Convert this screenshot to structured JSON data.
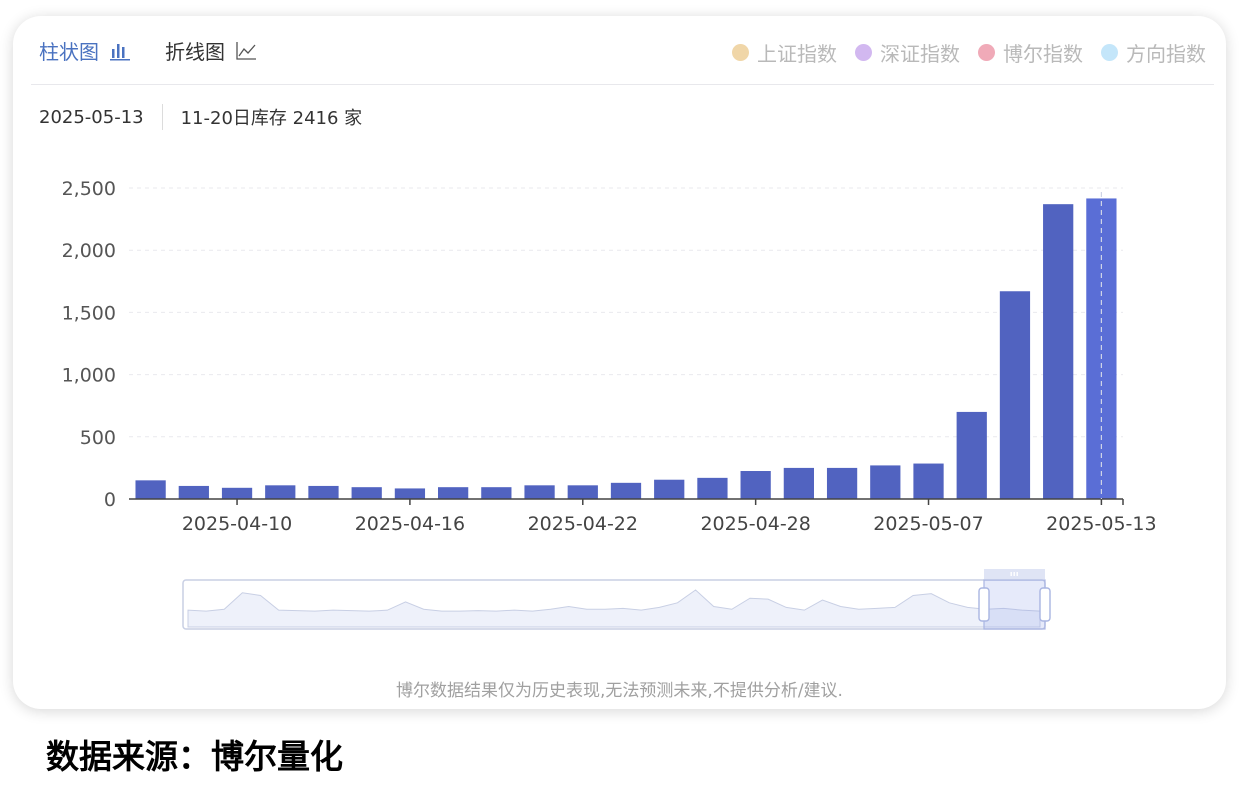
{
  "tabs": [
    {
      "label": "柱状图",
      "icon": "bar-chart-icon"
    },
    {
      "label": "折线图",
      "icon": "line-chart-icon"
    }
  ],
  "legend": [
    {
      "label": "上证指数",
      "color": "#f0d6a8"
    },
    {
      "label": "深证指数",
      "color": "#d2b8f0"
    },
    {
      "label": "博尔指数",
      "color": "#f0aab8"
    },
    {
      "label": "方向指数",
      "color": "#c4e6fa"
    }
  ],
  "info": {
    "date": "2025-05-13",
    "text": "11-20日库存 2416 家"
  },
  "disclaimer": "博尔数据结果仅为历史表现,无法预测未来,不提供分析/建议.",
  "source": "数据来源：博尔量化",
  "colors": {
    "bar": "#5163c0",
    "bar_highlight": "#5a6ed6",
    "active_tab": "#4a72c0"
  },
  "chart_data": {
    "type": "bar",
    "title": "",
    "xlabel": "",
    "ylabel": "",
    "ylim": [
      0,
      2500
    ],
    "yticks": [
      "0",
      "500",
      "1,000",
      "1,500",
      "2,000",
      "2,500"
    ],
    "categories": [
      "2025-04-08",
      "2025-04-09",
      "2025-04-10",
      "2025-04-11",
      "2025-04-14",
      "2025-04-15",
      "2025-04-16",
      "2025-04-17",
      "2025-04-18",
      "2025-04-21",
      "2025-04-22",
      "2025-04-23",
      "2025-04-24",
      "2025-04-25",
      "2025-04-28",
      "2025-04-29",
      "2025-04-30",
      "2025-05-06",
      "2025-05-07",
      "2025-05-08",
      "2025-05-09",
      "2025-05-12",
      "2025-05-13"
    ],
    "xtick_labels": [
      "2025-04-10",
      "2025-04-16",
      "2025-04-22",
      "2025-04-28",
      "2025-05-07",
      "2025-05-13"
    ],
    "values": [
      150,
      105,
      90,
      110,
      105,
      95,
      85,
      95,
      95,
      110,
      110,
      130,
      155,
      170,
      225,
      250,
      250,
      270,
      285,
      700,
      1670,
      2370,
      2416
    ],
    "highlight": "2025-05-13",
    "grid": true
  }
}
